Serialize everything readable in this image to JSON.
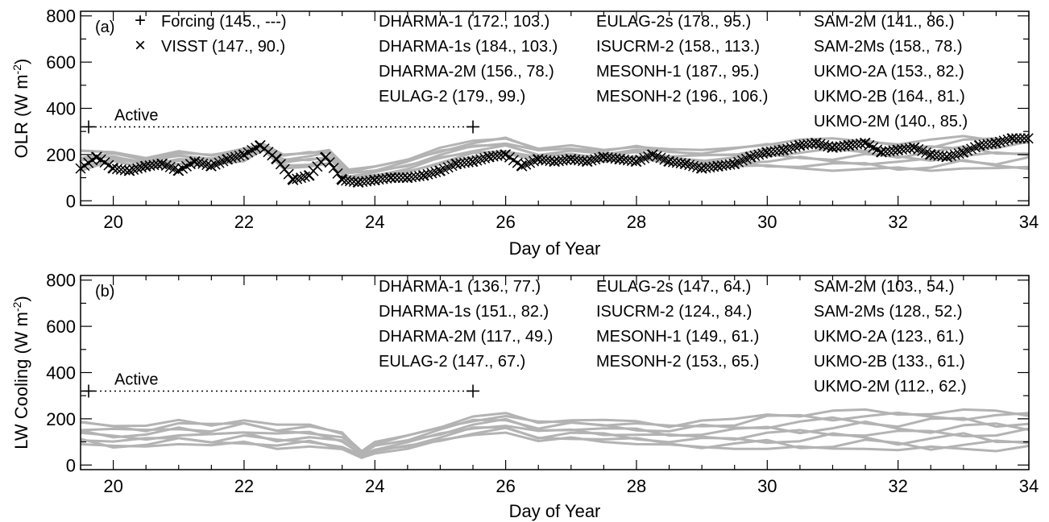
{
  "chart_data": [
    {
      "type": "line",
      "panel_label": "(a)",
      "ylabel": "OLR (W m",
      "ylabel_sup": "-2",
      "ylabel_close": ")",
      "xlabel": "Day of Year",
      "xlim": [
        19.5,
        34
      ],
      "ylim": [
        -20,
        820
      ],
      "xticks": [
        20,
        22,
        24,
        26,
        28,
        30,
        32,
        34
      ],
      "yticks": [
        0,
        200,
        400,
        600,
        800
      ],
      "active_label": "Active",
      "active_level": 320,
      "active_range": [
        19.5,
        25.5
      ],
      "legend_markers": [
        {
          "symbol": "+",
          "text": "Forcing  (145., ---)"
        },
        {
          "symbol": "×",
          "text": "VISST  (147., 90.)"
        }
      ],
      "model_stats": [
        [
          "DHARMA-1 (172., 103.)",
          "DHARMA-1s (184., 103.)",
          "DHARMA-2M (156., 78.)",
          "EULAG-2 (179., 99.)"
        ],
        [
          "EULAG-2s (178., 95.)",
          "ISUCRM-2 (158., 113.)",
          "MESONH-1 (187., 95.)",
          "MESONH-2 (196., 106.)"
        ],
        [
          "SAM-2M (141., 86.)",
          "SAM-2Ms (158., 78.)",
          "UKMO-2A (153., 82.)",
          "UKMO-2B (164., 81.)",
          "UKMO-2M (140., 85.)"
        ]
      ],
      "model_envelope": {
        "x": [
          19.5,
          20,
          20.5,
          21,
          21.5,
          22,
          22.3,
          22.6,
          23,
          23.3,
          23.6,
          24,
          24.5,
          25,
          25.5,
          26,
          26.5,
          27,
          27.5,
          28,
          28.5,
          29,
          29.5,
          30,
          30.5,
          31,
          31.5,
          32,
          32.5,
          33,
          33.5,
          34
        ],
        "low": [
          130,
          170,
          140,
          160,
          150,
          170,
          220,
          140,
          140,
          160,
          90,
          100,
          120,
          160,
          190,
          200,
          170,
          180,
          170,
          180,
          160,
          150,
          150,
          140,
          140,
          130,
          135,
          130,
          130,
          140,
          130,
          135
        ],
        "high": [
          220,
          215,
          185,
          215,
          200,
          230,
          245,
          200,
          215,
          220,
          135,
          150,
          185,
          230,
          260,
          275,
          230,
          240,
          220,
          240,
          225,
          220,
          230,
          255,
          265,
          270,
          265,
          255,
          265,
          280,
          275,
          280
        ]
      },
      "observed_visst": {
        "x": [
          19.5,
          19.75,
          20,
          20.25,
          20.5,
          20.75,
          21,
          21.25,
          21.5,
          21.75,
          22,
          22.25,
          22.5,
          22.75,
          23,
          23.25,
          23.5,
          23.75,
          24,
          24.25,
          24.5,
          24.75,
          25,
          25.25,
          25.5,
          25.75,
          26,
          26.25,
          26.5,
          26.75,
          27,
          27.25,
          27.5,
          27.75,
          28,
          28.25,
          28.5,
          28.75,
          29,
          29.25,
          29.5,
          29.75,
          30,
          30.25,
          30.5,
          30.75,
          31,
          31.25,
          31.5,
          31.75,
          32,
          32.25,
          32.5,
          32.75,
          33,
          33.25,
          33.5,
          33.75,
          34
        ],
        "y": [
          140,
          190,
          140,
          130,
          150,
          160,
          130,
          170,
          150,
          180,
          200,
          240,
          180,
          90,
          110,
          190,
          90,
          80,
          90,
          100,
          100,
          110,
          130,
          160,
          170,
          190,
          200,
          150,
          180,
          170,
          180,
          170,
          190,
          180,
          170,
          200,
          170,
          160,
          140,
          150,
          160,
          190,
          210,
          220,
          240,
          250,
          230,
          240,
          250,
          210,
          220,
          230,
          200,
          190,
          210,
          240,
          250,
          270,
          270
        ]
      }
    },
    {
      "type": "line",
      "panel_label": "(b)",
      "ylabel": "LW Cooling (W m",
      "ylabel_sup": "-2",
      "ylabel_close": ")",
      "xlabel": "Day of Year",
      "xlim": [
        19.5,
        34
      ],
      "ylim": [
        -20,
        820
      ],
      "xticks": [
        20,
        22,
        24,
        26,
        28,
        30,
        32,
        34
      ],
      "yticks": [
        0,
        200,
        400,
        600,
        800
      ],
      "active_label": "Active",
      "active_level": 320,
      "active_range": [
        19.5,
        25.5
      ],
      "model_stats": [
        [
          "DHARMA-1 (136., 77.)",
          "DHARMA-1s (151., 82.)",
          "DHARMA-2M (117., 49.)",
          "EULAG-2 (147., 67.)"
        ],
        [
          "EULAG-2s (147., 64.)",
          "ISUCRM-2 (124., 84.)",
          "MESONH-1 (149., 61.)",
          "MESONH-2 (153., 65.)"
        ],
        [
          "SAM-2M (103., 54.)",
          "SAM-2Ms (128., 52.)",
          "UKMO-2A (123., 61.)",
          "UKMO-2B (133., 61.)",
          "UKMO-2M (112., 62.)"
        ]
      ],
      "model_envelope": {
        "x": [
          19.5,
          20,
          20.5,
          21,
          21.5,
          22,
          22.5,
          23,
          23.5,
          23.8,
          24,
          24.5,
          25,
          25.5,
          26,
          26.5,
          27,
          27.5,
          28,
          28.5,
          29,
          29.5,
          30,
          30.5,
          31,
          31.5,
          32,
          32.5,
          33,
          33.5,
          34
        ],
        "low": [
          90,
          70,
          80,
          90,
          80,
          90,
          70,
          80,
          60,
          30,
          50,
          70,
          100,
          130,
          140,
          100,
          110,
          100,
          90,
          80,
          70,
          70,
          70,
          60,
          70,
          70,
          60,
          60,
          70,
          60,
          70
        ],
        "high": [
          190,
          180,
          170,
          195,
          180,
          200,
          175,
          175,
          145,
          60,
          100,
          130,
          170,
          210,
          225,
          190,
          200,
          195,
          190,
          175,
          195,
          200,
          220,
          230,
          235,
          240,
          230,
          235,
          240,
          235,
          230
        ]
      }
    }
  ]
}
